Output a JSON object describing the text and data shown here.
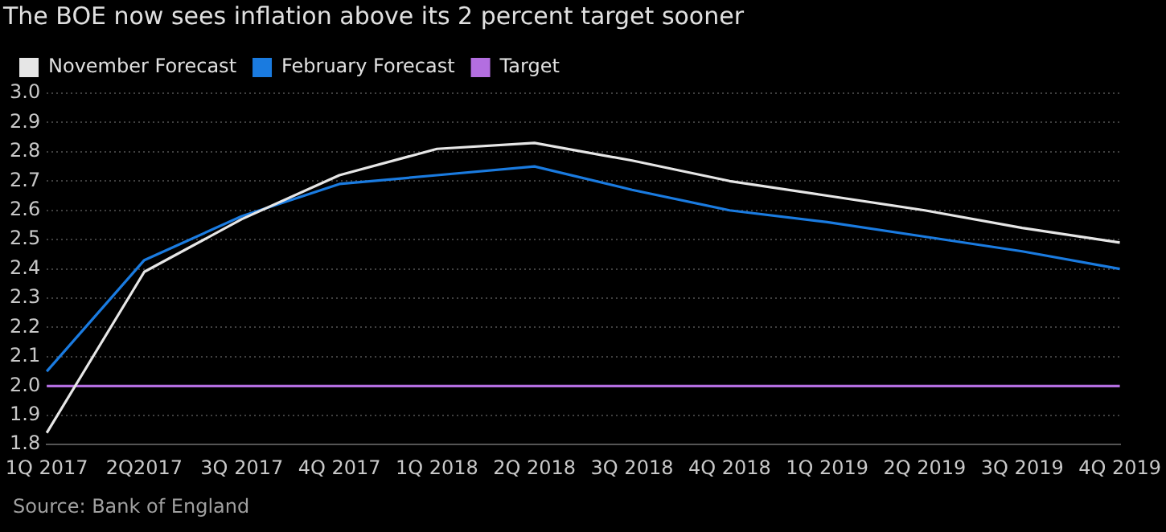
{
  "chart_data": {
    "type": "line",
    "title": "The BOE now sees inflation above its 2 percent target sooner",
    "categories": [
      "1Q 2017",
      "2Q2017",
      "3Q 2017",
      "4Q 2017",
      "1Q 2018",
      "2Q 2018",
      "3Q 2018",
      "4Q 2018",
      "1Q 2019",
      "2Q 2019",
      "3Q 2019",
      "4Q 2019"
    ],
    "series": [
      {
        "name": "November Forecast",
        "color": "#e6e6e6",
        "values": [
          1.84,
          2.39,
          2.57,
          2.72,
          2.81,
          2.83,
          2.77,
          2.7,
          2.65,
          2.6,
          2.54,
          2.49
        ]
      },
      {
        "name": "February Forecast",
        "color": "#1a7be0",
        "values": [
          2.05,
          2.43,
          2.58,
          2.69,
          2.72,
          2.75,
          2.67,
          2.6,
          2.56,
          2.51,
          2.46,
          2.4
        ]
      },
      {
        "name": "Target",
        "color": "#b36ee0",
        "values": [
          2.0,
          2.0,
          2.0,
          2.0,
          2.0,
          2.0,
          2.0,
          2.0,
          2.0,
          2.0,
          2.0,
          2.0
        ]
      }
    ],
    "ylim": [
      1.8,
      3.0
    ],
    "yticks": [
      {
        "value": 1.8,
        "label": "1.8"
      },
      {
        "value": 1.9,
        "label": "1.9"
      },
      {
        "value": 2.0,
        "label": "2.0"
      },
      {
        "value": 2.1,
        "label": "2.1"
      },
      {
        "value": 2.2,
        "label": "2.2"
      },
      {
        "value": 2.3,
        "label": "2.3"
      },
      {
        "value": 2.4,
        "label": "2.4"
      },
      {
        "value": 2.5,
        "label": "2.5"
      },
      {
        "value": 2.6,
        "label": "2.6"
      },
      {
        "value": 2.7,
        "label": "2.7"
      },
      {
        "value": 2.8,
        "label": "2.8"
      },
      {
        "value": 2.9,
        "label": "2.9"
      },
      {
        "value": 3.0,
        "label": "3.0"
      }
    ],
    "grid": "y",
    "legend": "top left",
    "marker": "none",
    "line_style": "solid",
    "annotations": [
      "Source: Bank of England"
    ]
  }
}
